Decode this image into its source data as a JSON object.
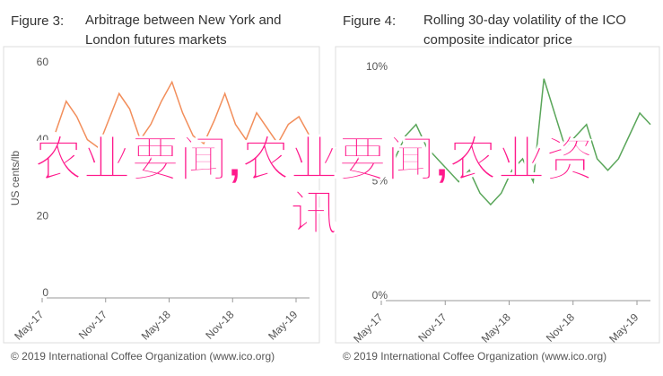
{
  "chart_data": [
    {
      "type": "line",
      "figure": "Figure 3:",
      "title": "Arbitrage between New York and London futures markets",
      "y_label": "US cents/lb",
      "source": "© 2019 International Coffee Organization (www.ico.org)",
      "categories": [
        "May-17",
        null,
        null,
        null,
        null,
        null,
        "Nov-17",
        null,
        null,
        null,
        null,
        null,
        "May-18",
        null,
        null,
        null,
        null,
        null,
        "Nov-18",
        null,
        null,
        null,
        null,
        null,
        "May-19"
      ],
      "series": [
        {
          "color": "#f28e5b",
          "values": [
            42,
            50,
            46,
            40,
            38,
            45,
            52,
            48,
            40,
            44,
            50,
            55,
            47,
            41,
            39,
            45,
            52,
            44,
            40,
            47,
            43,
            39,
            44,
            46,
            41
          ]
        }
      ],
      "ylim": [
        0,
        60
      ],
      "yticks": [
        0,
        20,
        40,
        60
      ],
      "grid": false
    },
    {
      "type": "line",
      "figure": "Figure 4:",
      "title": "Rolling 30-day volatility of the ICO composite indicator price",
      "source": "© 2019 International Coffee Organization (www.ico.org)",
      "categories": [
        "May-17",
        null,
        null,
        null,
        null,
        null,
        "Nov-17",
        null,
        null,
        null,
        null,
        null,
        "May-18",
        null,
        null,
        null,
        null,
        null,
        "Nov-18",
        null,
        null,
        null,
        null,
        null,
        "May-19"
      ],
      "series": [
        {
          "color": "#5aa65a",
          "values": [
            6,
            7,
            7.5,
            6.5,
            6,
            5.5,
            5,
            5.5,
            4.5,
            4,
            4.5,
            5.5,
            6,
            5,
            9.5,
            8,
            6.5,
            7,
            7.5,
            6,
            5.5,
            6,
            7,
            8,
            7.5
          ]
        }
      ],
      "ylim": [
        0,
        10
      ],
      "yticks": [
        {
          "value": 0,
          "label": "0%"
        },
        {
          "value": 5,
          "label": "5%"
        },
        {
          "value": 10,
          "label": "10%"
        }
      ],
      "grid": false
    }
  ],
  "overlay": "农业要闻,农业要闻,农业资讯"
}
